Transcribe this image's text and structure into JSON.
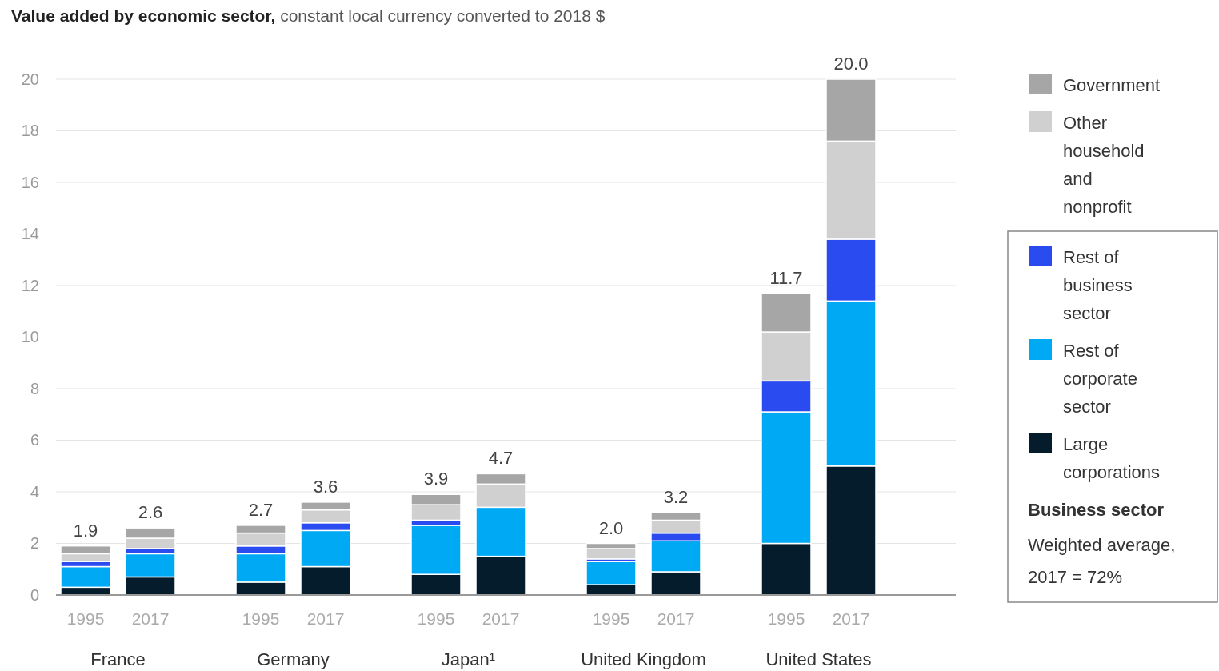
{
  "chart_data": {
    "type": "bar",
    "title": "Value added by economic sector,",
    "subtitle": "constant local currency converted to 2018 $",
    "categories": [
      "1995",
      "2017",
      "1995",
      "2017",
      "1995",
      "2017",
      "1995",
      "2017",
      "1995",
      "2017"
    ],
    "stacked": true,
    "series": [
      {
        "name": "Large corporations",
        "color": "#051c2c",
        "values": [
          0.3,
          0.7,
          0.5,
          1.1,
          0.8,
          1.5,
          0.4,
          0.9,
          2.0,
          5.0
        ]
      },
      {
        "name": "Rest of corporate sector",
        "color": "#00a9f4",
        "values": [
          0.8,
          0.9,
          1.1,
          1.4,
          1.9,
          1.9,
          0.9,
          1.2,
          5.1,
          6.4
        ]
      },
      {
        "name": "Rest of business sector",
        "color": "#2a4bf0",
        "values": [
          0.2,
          0.2,
          0.3,
          0.3,
          0.2,
          0,
          0.1,
          0.3,
          1.2,
          2.4
        ]
      },
      {
        "name": "Other household and nonprofit",
        "color": "#d0d0d0",
        "values": [
          0.3,
          0.4,
          0.5,
          0.5,
          0.6,
          0.9,
          0.4,
          0.5,
          1.9,
          3.8
        ]
      },
      {
        "name": "Government",
        "color": "#a6a6a6",
        "values": [
          0.3,
          0.4,
          0.3,
          0.3,
          0.4,
          0.4,
          0.2,
          0.3,
          1.5,
          2.4
        ]
      }
    ],
    "totals": [
      "1.9",
      "2.6",
      "2.7",
      "3.6",
      "3.9",
      "4.7",
      "2.0",
      "3.2",
      "11.7",
      "20.0"
    ],
    "ylim": [
      0,
      20
    ],
    "yticks": [
      0,
      2,
      4,
      6,
      8,
      10,
      12,
      14,
      16,
      18,
      20
    ],
    "grid": "y",
    "legend": "right",
    "annotations": [
      "France",
      "Germany",
      "Japan¹",
      "United Kingdom",
      "United States",
      "Business sector",
      "Weighted average, 2017 = 72%"
    ]
  }
}
